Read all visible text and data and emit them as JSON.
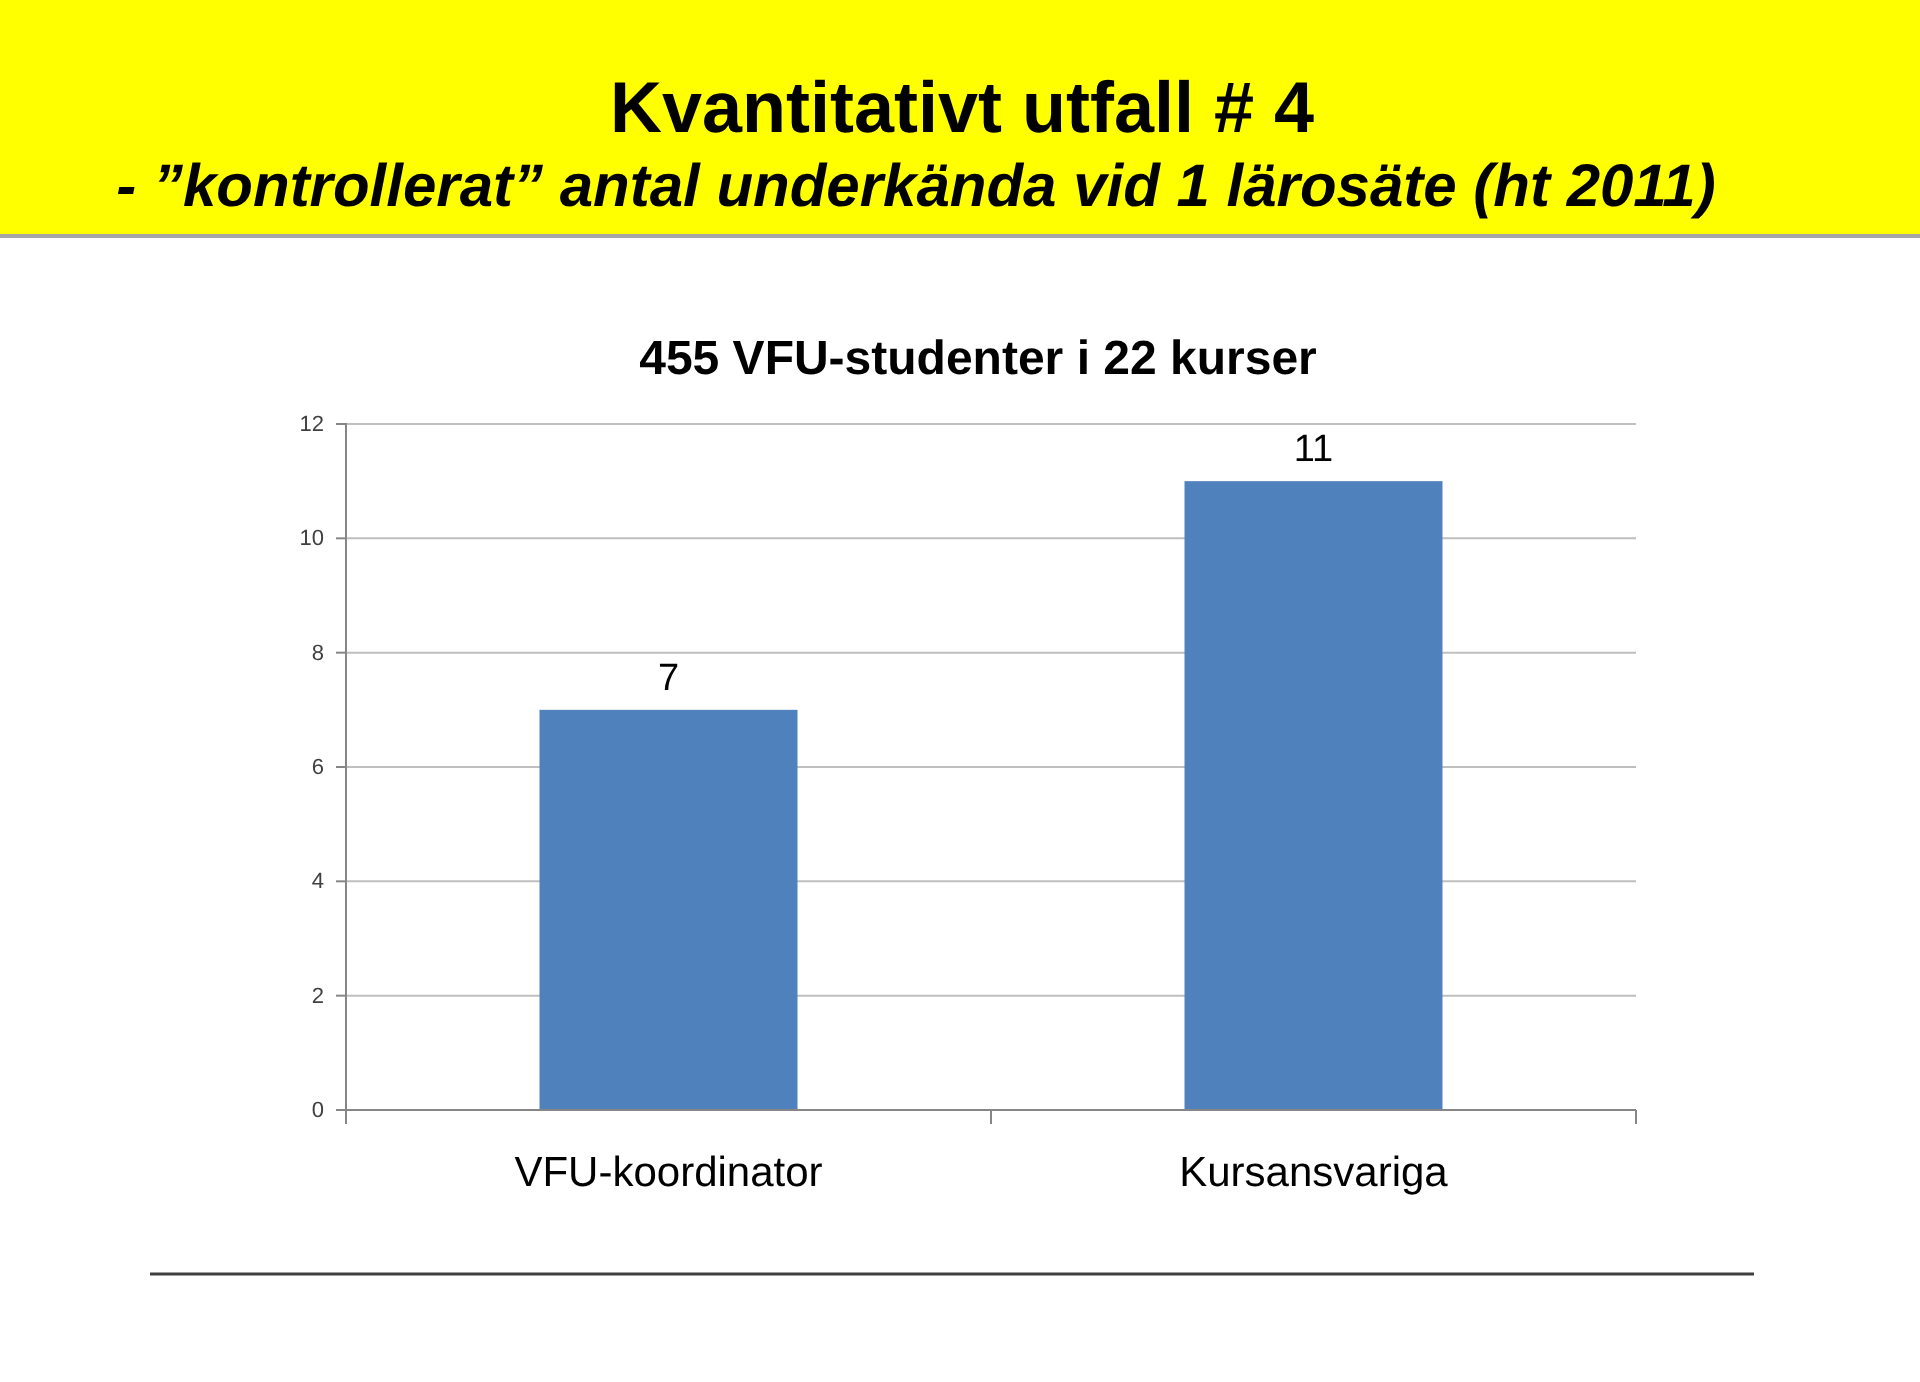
{
  "chart_data": {
    "type": "bar",
    "title": "Kvantitativt utfall # 4",
    "subtitle": "- ”kontrollerat” antal underkända vid 1 lärosäte (ht 2011)",
    "annotations": [
      "455 VFU-studenter i 22 kurser"
    ],
    "categories": [
      "VFU-koordinator",
      "Kursansvariga"
    ],
    "values": [
      7,
      11
    ],
    "color": "#4f81bd",
    "ylim": [
      0,
      12
    ],
    "yticks": [
      0,
      2,
      4,
      6,
      8,
      10,
      12
    ],
    "grid": "y",
    "data_labels": true
  }
}
